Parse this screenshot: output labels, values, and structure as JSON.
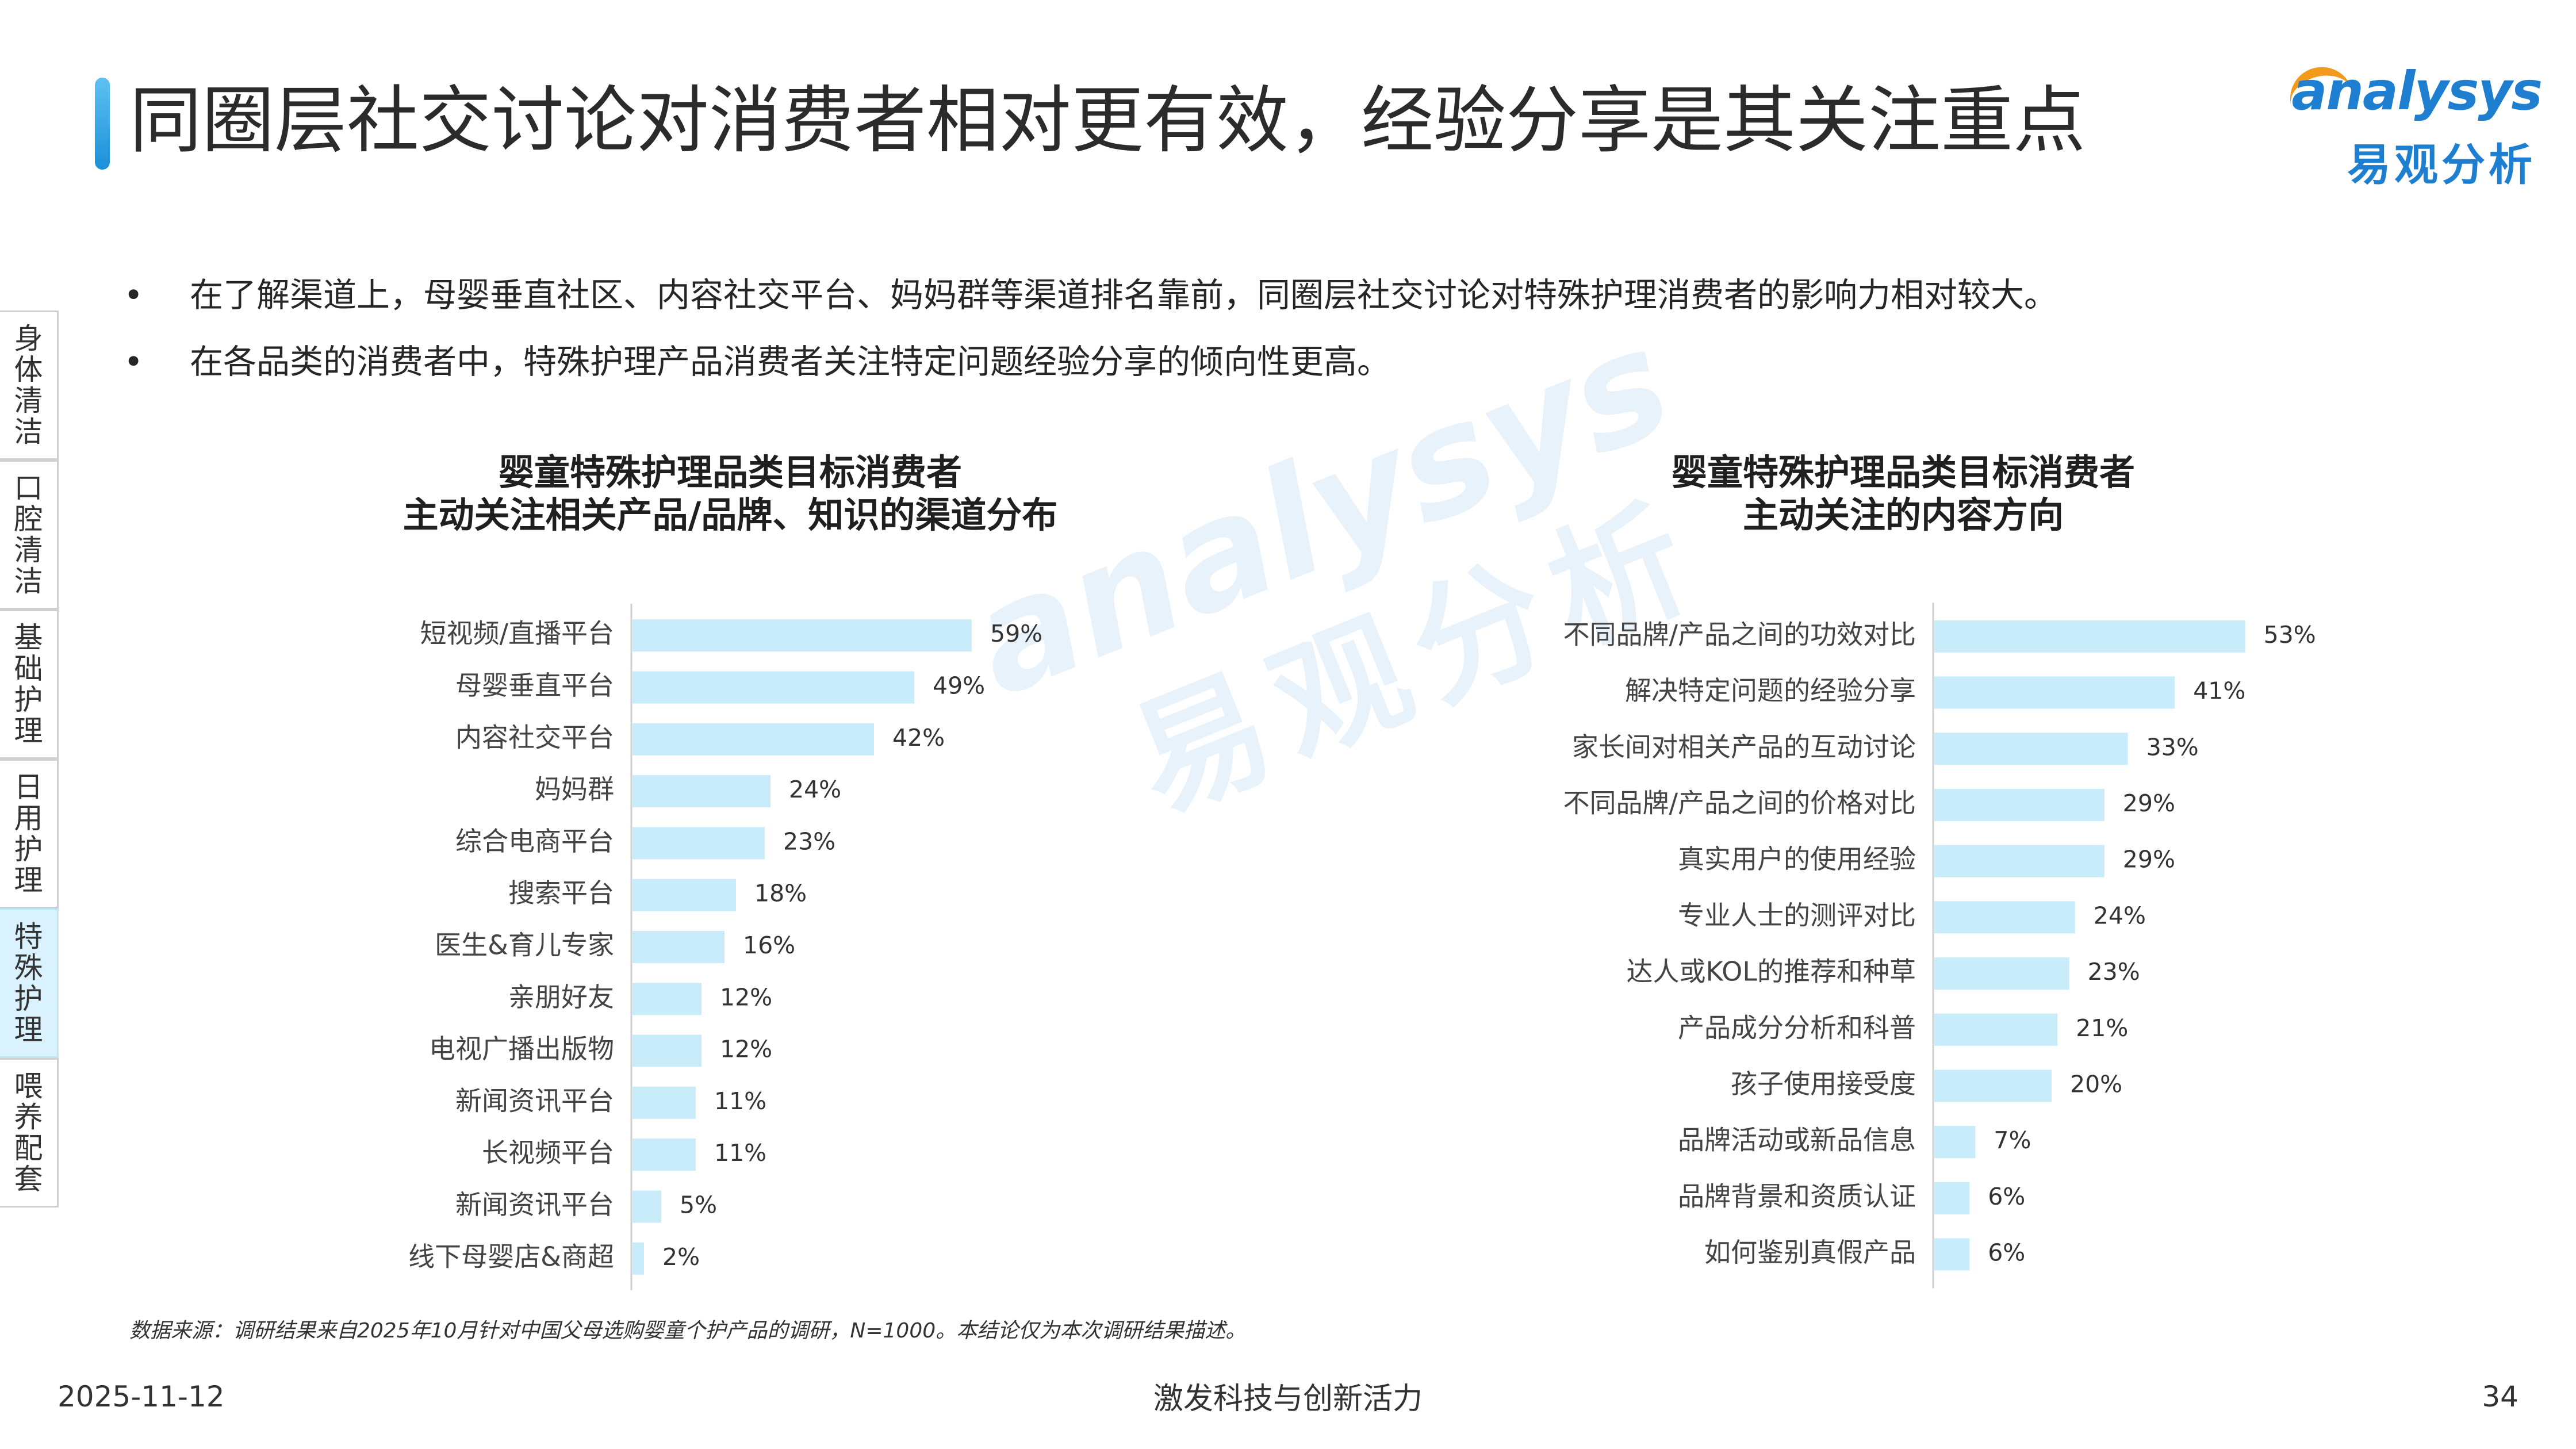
{
  "header": {
    "title": "同圈层社交讨论对消费者相对更有效，经验分享是其关注重点",
    "logo_en": "analysys",
    "logo_cn": "易观分析"
  },
  "bullets": [
    "在了解渠道上，母婴垂直社区、内容社交平台、妈妈群等渠道排名靠前，同圈层社交讨论对特殊护理消费者的影响力相对较大。",
    "在各品类的消费者中，特殊护理产品消费者关注特定问题经验分享的倾向性更高。"
  ],
  "bullet_marker": "•",
  "side_tabs": [
    {
      "label": "身体清洁",
      "active": false
    },
    {
      "label": "口腔清洁",
      "active": false
    },
    {
      "label": "基础护理",
      "active": false
    },
    {
      "label": "日用护理",
      "active": false
    },
    {
      "label": "特殊护理",
      "active": true
    },
    {
      "label": "喂养配套",
      "active": false
    }
  ],
  "chart_data": [
    {
      "type": "bar",
      "orientation": "horizontal",
      "title": "婴童特殊护理品类目标消费者",
      "subtitle": "主动关注相关产品/品牌、知识的渠道分布",
      "categories": [
        "短视频/直播平台",
        "母婴垂直平台",
        "内容社交平台",
        "妈妈群",
        "综合电商平台",
        "搜索平台",
        "医生&育儿专家",
        "亲朋好友",
        "电视广播出版物",
        "新闻资讯平台",
        "长视频平台",
        "新闻资讯平台",
        "线下母婴店&商超"
      ],
      "values": [
        59,
        49,
        42,
        24,
        23,
        18,
        16,
        12,
        12,
        11,
        11,
        5,
        2
      ],
      "value_labels": [
        "59%",
        "49%",
        "42%",
        "24%",
        "23%",
        "18%",
        "16%",
        "12%",
        "12%",
        "11%",
        "11%",
        "5%",
        "2%"
      ],
      "unit": "%",
      "xlim": [
        0,
        100
      ],
      "color": "#c9ecfb"
    },
    {
      "type": "bar",
      "orientation": "horizontal",
      "title": "婴童特殊护理品类目标消费者",
      "subtitle": "主动关注的内容方向",
      "categories": [
        "不同品牌/产品之间的功效对比",
        "解决特定问题的经验分享",
        "家长间对相关产品的互动讨论",
        "不同品牌/产品之间的价格对比",
        "真实用户的使用经验",
        "专业人士的测评对比",
        "达人或KOL的推荐和种草",
        "产品成分分析和科普",
        "孩子使用接受度",
        "品牌活动或新品信息",
        "品牌背景和资质认证",
        "如何鉴别真假产品"
      ],
      "values": [
        53,
        41,
        33,
        29,
        29,
        24,
        23,
        21,
        20,
        7,
        6,
        6
      ],
      "value_labels": [
        "53%",
        "41%",
        "33%",
        "29%",
        "29%",
        "24%",
        "23%",
        "21%",
        "20%",
        "7%",
        "6%",
        "6%"
      ],
      "unit": "%",
      "xlim": [
        0,
        100
      ],
      "color": "#c9ecfb"
    }
  ],
  "watermark": {
    "en": "analysys",
    "cn": "易观分析"
  },
  "source_note": "数据来源：调研结果来自2025年10月针对中国父母选购婴童个护产品的调研，N=1000。本结论仅为本次调研结果描述。",
  "footer": {
    "date": "2025-11-12",
    "slogan": "激发科技与创新活力",
    "page": "34"
  }
}
